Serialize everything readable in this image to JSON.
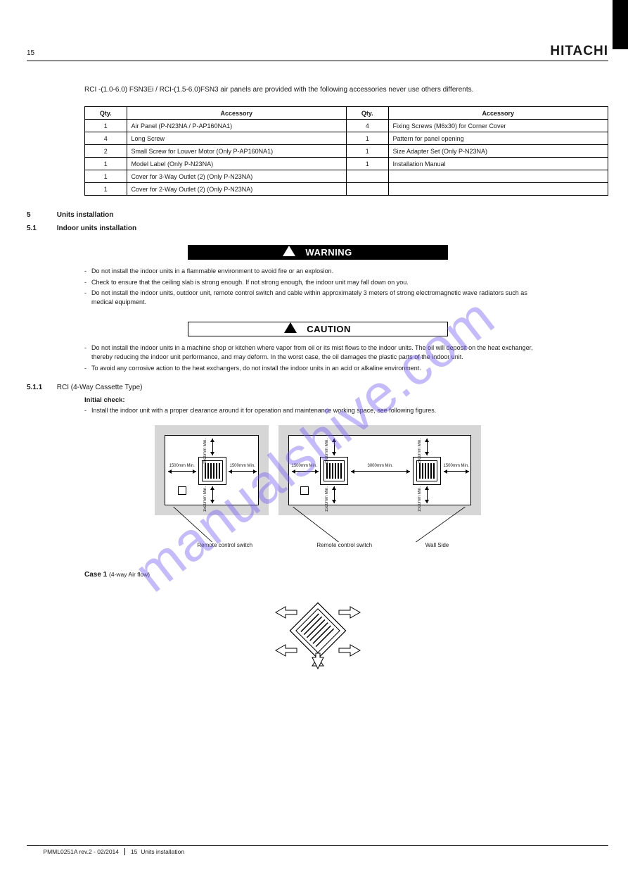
{
  "header": {
    "manual_ref": "PMML0251A rev.2 - 02/2014",
    "brand": "HITACHI"
  },
  "page": {
    "number": "15",
    "title": "Units installation"
  },
  "intro": "RCI -(1.0-6.0) FSN3Ei / RCI-(1.5-6.0)FSN3 air panels are provided with the following accessories never use others differents.",
  "parts": {
    "headers": [
      "Qty.",
      "Accessory",
      "Qty.",
      "Accessory"
    ],
    "rows": [
      [
        "1",
        "Air Panel (P-N23NA / P-AP160NA1)",
        "4",
        "Fixing Screws (M6x30) for Corner Cover"
      ],
      [
        "4",
        "Long Screw",
        "1",
        "Pattern for panel opening"
      ],
      [
        "2",
        "Small Screw for Louver Motor (Only P-AP160NA1)",
        "1",
        "Size Adapter Set (Only P-N23NA)"
      ],
      [
        "1",
        "Model Label (Only P-N23NA)",
        "1",
        "Installation Manual"
      ],
      [
        "1",
        "Cover for 3-Way Outlet (2) (Only P-N23NA)",
        "",
        ""
      ],
      [
        "1",
        "Cover for 2-Way Outlet (2) (Only P-N23NA)",
        "",
        ""
      ]
    ]
  },
  "section_unit": {
    "num": "5",
    "title": "Units installation"
  },
  "section_indoor": {
    "num": "5.1",
    "title": "Indoor units installation"
  },
  "warning_label": "WARNING",
  "caution_label": "CAUTION",
  "warning_items": [
    "Do not install the indoor units in a flammable environment to avoid fire or an explosion.",
    "Check to ensure that the ceiling slab is strong enough. If not strong enough, the indoor unit may fall down on you.",
    "Do not install the indoor units, outdoor unit, remote control switch and cable within approximately 3 meters of strong electromagnetic wave radiators such as medical equipment."
  ],
  "caution_items": [
    "Do not install the indoor units in a machine shop or kitchen where vapor from oil or its mist flows to the indoor units. The oil will deposit on the heat exchanger, thereby reducing the indoor unit performance, and may deform. In the worst case, the oil damages the plastic parts of the indoor unit.",
    "To avoid any corrosive action to the heat exchangers, do not install the indoor units in an acid or alkaline environment."
  ],
  "rci_label": "5.1.1",
  "rci_title": "RCI (4-Way Cassette Type)",
  "initial_check_label": "Initial check:",
  "initial_check_items": [
    "Install the indoor unit with a proper clearance around it for operation and maintenance working space, see following figures."
  ],
  "diagram": {
    "dim_1500": "1500mm\nMin.",
    "dim_3000": "3000mm\nMin.",
    "labels": {
      "remote": "Remote control switch",
      "wall": "Wall Side"
    }
  },
  "case1": {
    "title": "Case 1",
    "subtitle": "(4-way Air flow)"
  },
  "footer": {
    "ref": "PMML0251A rev.2 - 02/2014",
    "page_name": "Units installation",
    "page_num": "15"
  },
  "watermark": "manualshive.com"
}
